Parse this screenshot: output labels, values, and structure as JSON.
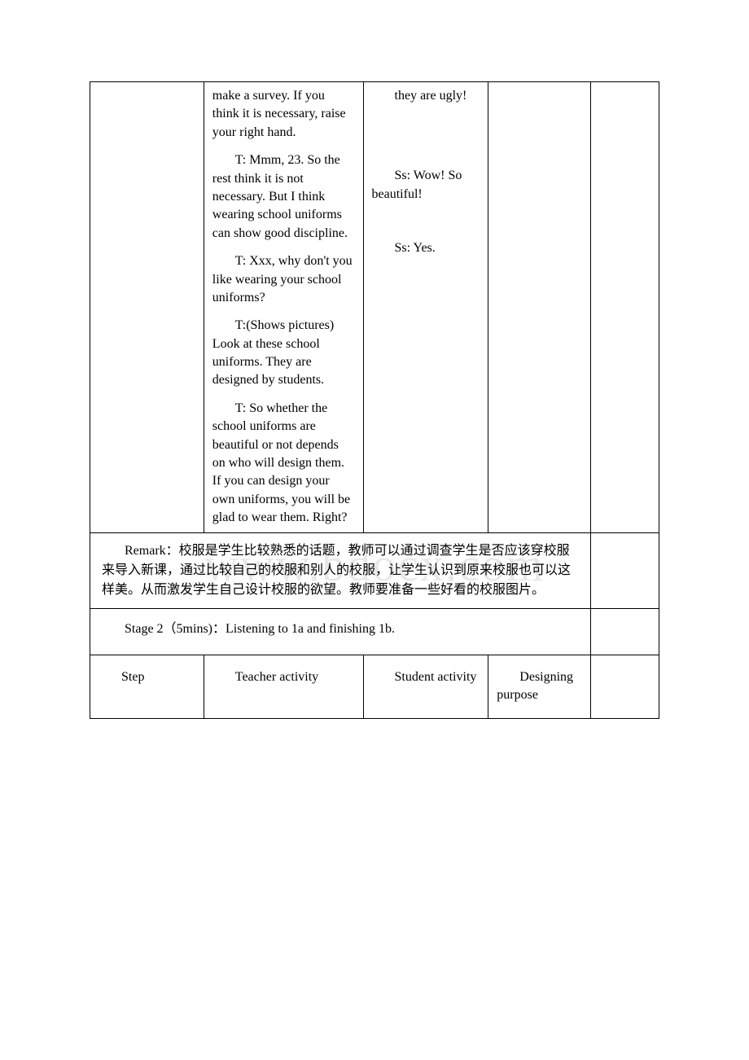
{
  "row1": {
    "teacher": {
      "p1": "make a survey. If you think it is necessary, raise your right hand.",
      "p2": "T: Mmm, 23. So the rest think it is not necessary. But I think wearing school uniforms can show good discipline.",
      "p3": "T: Xxx, why don't you like wearing your school uniforms?",
      "p4": "T:(Shows pictures) Look at these school uniforms. They are designed by students.",
      "p5": "T: So whether the school uniforms are beautiful or not depends on who will design them. If you can design your own uniforms, you will be glad to wear them. Right?"
    },
    "student": {
      "s1": "they are ugly!",
      "s2": "Ss: Wow! So beautiful!",
      "s3": "Ss: Yes."
    }
  },
  "remark": "Remark：校服是学生比较熟悉的话题，教师可以通过调查学生是否应该穿校服来导入新课，通过比较自己的校服和别人的校服，让学生认识到原来校服也可以这样美。从而激发学生自己设计校服的欲望。教师要准备一些好看的校服图片。",
  "stage": "Stage 2（5mins)：Listening to 1a and finishing 1b.",
  "headers": {
    "step": "Step",
    "teacher": "Teacher activity",
    "student": "Student activity",
    "purpose": "Designing purpose"
  }
}
